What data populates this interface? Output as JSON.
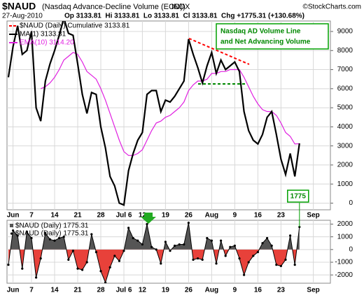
{
  "header": {
    "symbol": "$NAUD",
    "description": "(Nasdaq Advance-Decline Volume (EOD))",
    "exchange": "INDX",
    "copyright": "©StockCharts.com",
    "date": "27-Aug-2010",
    "quote": "Op 3133.81  Hi 3133.81  Lo 3133.81  Cl 3133.81  Chg +1775.31 (+130.68%)"
  },
  "chart_data": [
    {
      "type": "line",
      "legend_title": "$NAUD (Daily) Cumulative 3133.81",
      "legend_title_color": "#ff0000",
      "annotation": [
        "Nasdaq AD Volume Line",
        "and Net Advancing Volume"
      ],
      "categories": [
        null,
        "Jun",
        null,
        null,
        null,
        "7",
        null,
        null,
        null,
        null,
        "14",
        null,
        null,
        null,
        null,
        "21",
        null,
        null,
        null,
        null,
        "28",
        null,
        null,
        null,
        null,
        "Jul 6",
        null,
        null,
        null,
        "12",
        null,
        null,
        null,
        null,
        "19",
        null,
        null,
        null,
        null,
        "26",
        null,
        null,
        null,
        null,
        "Aug",
        null,
        null,
        null,
        null,
        "9",
        null,
        null,
        null,
        null,
        "16",
        null,
        null,
        null,
        null,
        "23",
        null,
        null,
        null,
        null,
        null,
        null,
        "Sep"
      ],
      "series": [
        {
          "name": "MA(1) 3133.81",
          "color": "#000000",
          "values": [
            6600,
            8200,
            9300,
            7800,
            8000,
            9000,
            5000,
            4300,
            6400,
            7300,
            8000,
            8800,
            9700,
            8900,
            8800,
            7300,
            5700,
            4700,
            5800,
            5700,
            4000,
            2900,
            1400,
            900,
            0,
            -100,
            1700,
            2600,
            3300,
            3700,
            5700,
            5900,
            5900,
            4800,
            5400,
            5300,
            5600,
            6000,
            6400,
            8600,
            7800,
            7100,
            6300,
            7200,
            7900,
            6800,
            7500,
            7000,
            7200,
            7400,
            6900,
            4800,
            3800,
            3300,
            3100,
            3600,
            4500,
            4800,
            3600,
            2300,
            1500,
            2600,
            1400,
            3133.81,
            null,
            null,
            null
          ]
        },
        {
          "name": "EMA(10) 3114.20",
          "color": "#e020e0",
          "values": [
            null,
            null,
            null,
            null,
            null,
            null,
            null,
            6000,
            6100,
            6300,
            6600,
            7000,
            7500,
            7700,
            7900,
            7800,
            7400,
            6900,
            6700,
            6500,
            6000,
            5400,
            4700,
            4000,
            3300,
            2700,
            2500,
            2500,
            2600,
            2800,
            3300,
            3800,
            4200,
            4300,
            4500,
            4600,
            4800,
            5000,
            5300,
            5900,
            6200,
            6400,
            6400,
            6500,
            6800,
            6800,
            6900,
            6900,
            7000,
            7000,
            7000,
            6600,
            6100,
            5600,
            5200,
            4900,
            4800,
            4800,
            4600,
            4200,
            3700,
            3500,
            3100,
            3114.2,
            null,
            null,
            null
          ]
        }
      ],
      "ylim": [
        -350,
        9550
      ],
      "yticks": [
        0,
        1000,
        2000,
        3000,
        4000,
        5000,
        6000,
        7000,
        8000,
        9000
      ],
      "grid": true
    },
    {
      "type": "area",
      "categories": [
        null,
        "Jun",
        null,
        null,
        null,
        "7",
        null,
        null,
        null,
        null,
        "14",
        null,
        null,
        null,
        null,
        "21",
        null,
        null,
        null,
        null,
        "28",
        null,
        null,
        null,
        null,
        "Jul 6",
        null,
        null,
        null,
        "12",
        null,
        null,
        null,
        null,
        "19",
        null,
        null,
        null,
        null,
        "26",
        null,
        null,
        null,
        null,
        "Aug",
        null,
        null,
        null,
        null,
        "9",
        null,
        null,
        null,
        null,
        "16",
        null,
        null,
        null,
        null,
        "23",
        null,
        null,
        null,
        null,
        null,
        null,
        "Sep"
      ],
      "series": [
        {
          "name": "$NAUD (Daily) 1775.31",
          "marker_name": "$NAUD (Daily) 1775.31",
          "color": "#555555",
          "negative_color": "#e8413a",
          "line_color": "#000000",
          "values": [
            -1200,
            1500,
            1100,
            -1500,
            1400,
            900,
            -2200,
            -700,
            1300,
            800,
            700,
            900,
            1000,
            -800,
            -100,
            -1500,
            -1600,
            -1000,
            1200,
            -200,
            -1700,
            -2600,
            -1400,
            -500,
            -900,
            -100,
            1700,
            900,
            700,
            400,
            2000,
            200,
            0,
            -1100,
            600,
            -100,
            300,
            400,
            400,
            2100,
            -800,
            -700,
            -800,
            900,
            700,
            -1100,
            700,
            -500,
            200,
            300,
            -700,
            -2000,
            -1000,
            -500,
            -200,
            500,
            900,
            300,
            -1200,
            -1300,
            -800,
            1100,
            -1200,
            1775.31,
            null,
            null,
            null
          ],
          "value_labels": [
            null,
            null,
            null,
            null,
            null,
            null,
            null,
            null,
            null,
            null,
            null,
            null,
            null,
            null,
            null,
            null,
            null,
            null,
            null,
            null,
            null,
            null,
            null,
            null,
            null,
            null,
            null,
            null,
            null,
            null,
            null,
            null,
            null,
            null,
            null,
            null,
            null,
            null,
            null,
            null,
            null,
            null,
            null,
            null,
            null,
            null,
            null,
            null,
            null,
            null,
            null,
            null,
            null,
            null,
            null,
            null,
            null,
            null,
            null,
            null,
            null,
            null,
            null,
            "1775",
            null,
            null,
            null
          ]
        }
      ],
      "ylim": [
        -2650,
        2300
      ],
      "yticks": [
        -2000,
        -1000,
        0,
        1000,
        2000
      ],
      "grid": true
    }
  ]
}
